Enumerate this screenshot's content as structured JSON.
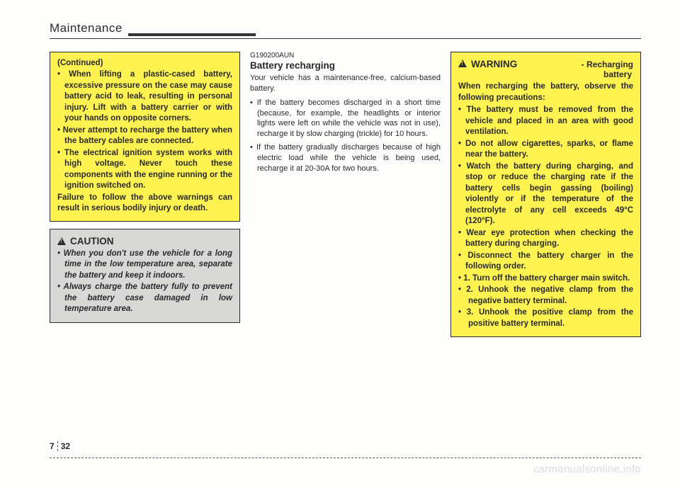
{
  "header": {
    "title": "Maintenance"
  },
  "col1": {
    "continued": "(Continued)",
    "items": [
      "When lifting a plastic-cased bat­tery, excessive pressure on the case may cause battery acid to leak, resulting in personal injury. Lift with a battery carrier or with your hands on opposite corners.",
      "Never attempt to recharge the battery when the battery cables are connected.",
      "The electrical ignition system works with high voltage. Never touch these components with the engine running or the ignition switched on."
    ],
    "tail": "Failure to follow the above warn­ings can result in serious bodily injury or death.",
    "caution_head": "CAUTION",
    "caution_items": [
      "When you don't use the vehicle for a long time in the low temper­ature area, separate the battery and keep it indoors.",
      "Always charge the battery fully to prevent the battery case dam­aged in low temperature area."
    ]
  },
  "col2": {
    "code": "G190200AUN",
    "title": "Battery recharging",
    "para": "Your vehicle has a maintenance-free, calcium-based battery.",
    "items": [
      "If the battery becomes discharged in a short time (because, for example, the headlights or interior lights were left on while the vehicle was not in use), recharge it by slow charging (trickle) for 10 hours.",
      "If the battery gradually discharges because of high electric load while the vehicle is being used, recharge it at 20-30A for two hours."
    ]
  },
  "col3": {
    "warn_head": "WARNING",
    "warn_sub1": "- Recharging",
    "warn_sub2": "battery",
    "intro": "When recharging the battery, observe the following precautions:",
    "items": [
      "The battery must be removed from the vehicle and placed in an area with good ventilation.",
      "Do not allow cigarettes, sparks, or flame near the battery.",
      "Watch the battery during charg­ing, and stop or reduce the charg­ing rate if the battery cells begin gassing (boiling) violently or if the temperature of the electrolyte of any cell exceeds 49°C (120°F).",
      "Wear eye protection when check­ing the battery during charging.",
      "Disconnect the battery charger in the following order."
    ],
    "ol": [
      "1. Turn off the battery charger main switch.",
      "2. Unhook the negative clamp from the negative battery terminal.",
      "3. Unhook the positive clamp from the positive battery terminal."
    ]
  },
  "footer": {
    "chapter": "7",
    "page": "32",
    "watermark": "carmanualsonline.info"
  },
  "colors": {
    "yellow": "#fff352",
    "gray": "#d8d8d6",
    "text": "#2a2a2a",
    "watermark": "#dcdcdc"
  }
}
